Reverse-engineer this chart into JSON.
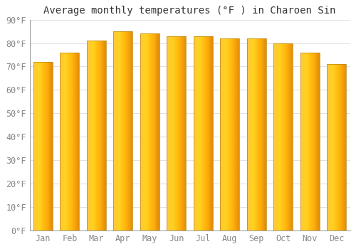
{
  "title": "Average monthly temperatures (°F ) in Charoen Sin",
  "months": [
    "Jan",
    "Feb",
    "Mar",
    "Apr",
    "May",
    "Jun",
    "Jul",
    "Aug",
    "Sep",
    "Oct",
    "Nov",
    "Dec"
  ],
  "values": [
    72,
    76,
    81,
    85,
    84,
    83,
    83,
    82,
    82,
    80,
    76,
    71
  ],
  "bar_color_left": "#FFD060",
  "bar_color_mid": "#FFB020",
  "bar_color_right": "#E8950A",
  "bar_edge_color": "#C87800",
  "background_color": "#FFFFFF",
  "grid_color": "#E0E0E8",
  "ylim": [
    0,
    90
  ],
  "yticks": [
    0,
    10,
    20,
    30,
    40,
    50,
    60,
    70,
    80,
    90
  ],
  "ytick_labels": [
    "0°F",
    "10°F",
    "20°F",
    "30°F",
    "40°F",
    "50°F",
    "60°F",
    "70°F",
    "80°F",
    "90°F"
  ],
  "title_fontsize": 10,
  "tick_fontsize": 8.5
}
